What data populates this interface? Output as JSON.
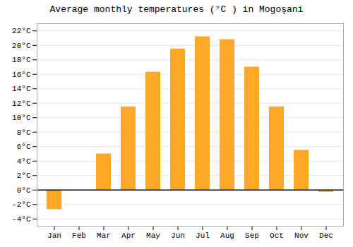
{
  "chart_data": {
    "type": "bar",
    "title": "Average monthly temperatures (°C ) in Mogoşani",
    "categories": [
      "Jan",
      "Feb",
      "Mar",
      "Apr",
      "May",
      "Jun",
      "Jul",
      "Aug",
      "Sep",
      "Oct",
      "Nov",
      "Dec"
    ],
    "values": [
      -2.7,
      0.0,
      5.0,
      11.5,
      16.3,
      19.5,
      21.2,
      20.8,
      17.0,
      11.5,
      5.5,
      -0.3
    ],
    "color": "#FFA726",
    "ylim": [
      -5,
      23
    ],
    "yticks": [
      {
        "value": -4,
        "label": "-4°C"
      },
      {
        "value": -2,
        "label": "-2°C"
      },
      {
        "value": 0,
        "label": "0°C"
      },
      {
        "value": 2,
        "label": "2°C"
      },
      {
        "value": 4,
        "label": "4°C"
      },
      {
        "value": 6,
        "label": "6°C"
      },
      {
        "value": 8,
        "label": "8°C"
      },
      {
        "value": 10,
        "label": "10°C"
      },
      {
        "value": 12,
        "label": "12°C"
      },
      {
        "value": 14,
        "label": "14°C"
      },
      {
        "value": 16,
        "label": "16°C"
      },
      {
        "value": 18,
        "label": "18°C"
      },
      {
        "value": 20,
        "label": "20°C"
      },
      {
        "value": 22,
        "label": "22°C"
      }
    ],
    "grid": true
  }
}
